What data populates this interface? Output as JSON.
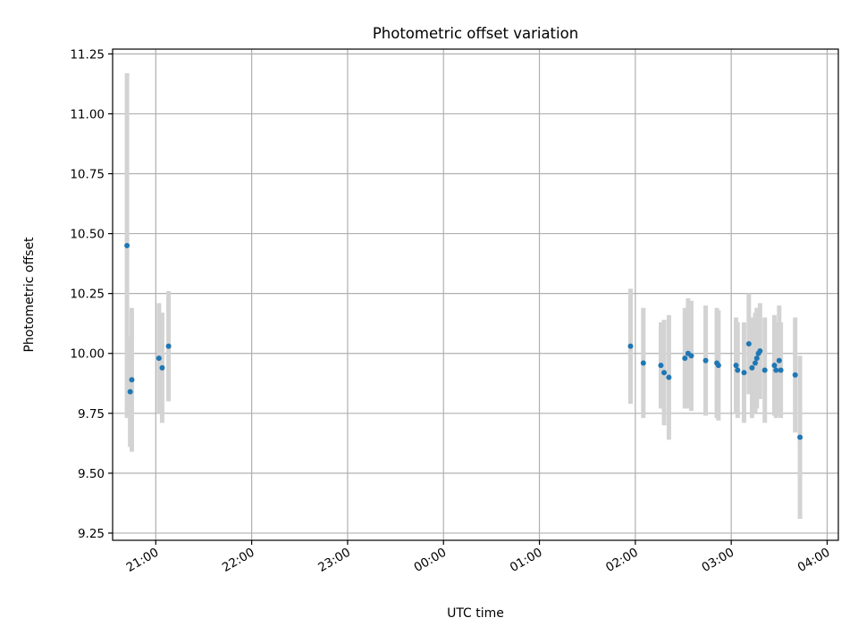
{
  "chart_data": {
    "type": "scatter",
    "title": "Photometric offset variation",
    "xlabel": "UTC time",
    "ylabel": "Photometric offset",
    "xlim": [
      "20:33",
      "04:07"
    ],
    "ylim": [
      9.22,
      11.27
    ],
    "x_ticks": [
      "21:00",
      "22:00",
      "23:00",
      "00:00",
      "01:00",
      "02:00",
      "03:00",
      "04:00"
    ],
    "y_ticks": [
      "9.25",
      "9.50",
      "9.75",
      "10.00",
      "10.25",
      "10.50",
      "10.75",
      "11.00",
      "11.25"
    ],
    "grid": true,
    "colors": {
      "points": "#1f77b4",
      "error_bars": "#d3d3d3",
      "grid": "#b0b0b0"
    },
    "series": [
      {
        "points": [
          {
            "x": "20:42",
            "y": 10.45,
            "err": 0.72
          },
          {
            "x": "20:44",
            "y": 9.84,
            "err": 0.23
          },
          {
            "x": "20:45",
            "y": 9.89,
            "err": 0.3
          },
          {
            "x": "21:02",
            "y": 9.98,
            "err": 0.23
          },
          {
            "x": "21:04",
            "y": 9.94,
            "err": 0.23
          },
          {
            "x": "21:08",
            "y": 10.03,
            "err": 0.23
          },
          {
            "x": "01:57",
            "y": 10.03,
            "err": 0.24
          },
          {
            "x": "02:05",
            "y": 9.96,
            "err": 0.23
          },
          {
            "x": "02:16",
            "y": 9.95,
            "err": 0.18
          },
          {
            "x": "02:18",
            "y": 9.92,
            "err": 0.22
          },
          {
            "x": "02:21",
            "y": 9.9,
            "err": 0.26
          },
          {
            "x": "02:31",
            "y": 9.98,
            "err": 0.21
          },
          {
            "x": "02:33",
            "y": 10.0,
            "err": 0.23
          },
          {
            "x": "02:35",
            "y": 9.99,
            "err": 0.23
          },
          {
            "x": "02:44",
            "y": 9.97,
            "err": 0.23
          },
          {
            "x": "02:51",
            "y": 9.96,
            "err": 0.23
          },
          {
            "x": "02:52",
            "y": 9.95,
            "err": 0.23
          },
          {
            "x": "03:03",
            "y": 9.95,
            "err": 0.2
          },
          {
            "x": "03:04",
            "y": 9.93,
            "err": 0.2
          },
          {
            "x": "03:08",
            "y": 9.92,
            "err": 0.21
          },
          {
            "x": "03:11",
            "y": 10.04,
            "err": 0.21
          },
          {
            "x": "03:13",
            "y": 9.94,
            "err": 0.21
          },
          {
            "x": "03:15",
            "y": 9.96,
            "err": 0.21
          },
          {
            "x": "03:16",
            "y": 9.98,
            "err": 0.21
          },
          {
            "x": "03:17",
            "y": 10.0,
            "err": 0.19
          },
          {
            "x": "03:18",
            "y": 10.01,
            "err": 0.2
          },
          {
            "x": "03:21",
            "y": 9.93,
            "err": 0.22
          },
          {
            "x": "03:27",
            "y": 9.95,
            "err": 0.21
          },
          {
            "x": "03:28",
            "y": 9.93,
            "err": 0.2
          },
          {
            "x": "03:30",
            "y": 9.97,
            "err": 0.23
          },
          {
            "x": "03:31",
            "y": 9.93,
            "err": 0.2
          },
          {
            "x": "03:40",
            "y": 9.91,
            "err": 0.24
          },
          {
            "x": "03:43",
            "y": 9.65,
            "err": 0.34
          }
        ]
      }
    ]
  }
}
